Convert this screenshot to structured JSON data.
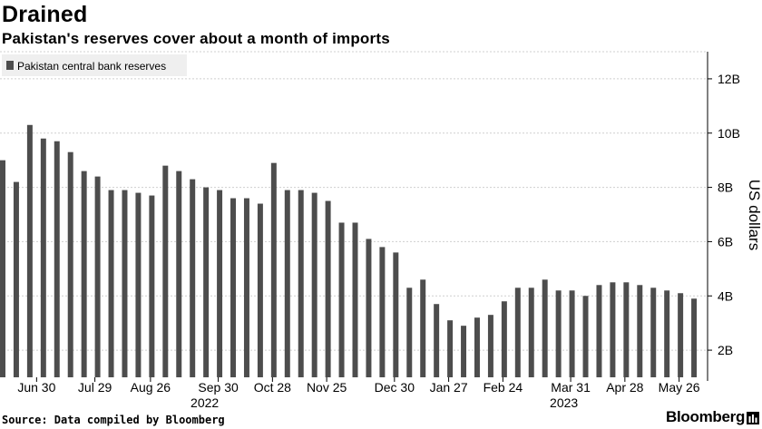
{
  "header": {
    "title": "Drained",
    "subtitle": "Pakistan's reserves cover about a month of imports"
  },
  "footer": {
    "source": "Source: Data compiled by Bloomberg",
    "brand": "Bloomberg"
  },
  "colors": {
    "bar": "#4d4d4d",
    "grid": "#cfcfcf",
    "legend_bg": "#efefef"
  },
  "chart_data": {
    "type": "bar",
    "series": [
      {
        "name": "Pakistan central bank reserves",
        "values": [
          9.0,
          8.2,
          10.3,
          9.8,
          9.7,
          9.3,
          8.6,
          8.4,
          7.9,
          7.9,
          7.8,
          7.7,
          8.8,
          8.6,
          8.3,
          8.0,
          7.9,
          7.6,
          7.6,
          7.4,
          8.9,
          7.9,
          7.9,
          7.8,
          7.5,
          6.7,
          6.7,
          6.1,
          5.8,
          5.6,
          4.3,
          4.6,
          3.7,
          3.1,
          2.9,
          3.2,
          3.3,
          3.8,
          4.3,
          4.3,
          4.6,
          4.2,
          4.2,
          4.0,
          4.4,
          4.5,
          4.5,
          4.4,
          4.3,
          4.2,
          4.1,
          3.9
        ]
      }
    ],
    "x_tick_labels": [
      {
        "index": 2.5,
        "label": "Jun 30"
      },
      {
        "index": 6.8,
        "label": "Jul 29"
      },
      {
        "index": 10.9,
        "label": "Aug 26"
      },
      {
        "index": 15.9,
        "label": "Sep 30"
      },
      {
        "index": 19.9,
        "label": "Oct 28"
      },
      {
        "index": 23.9,
        "label": "Nov 25"
      },
      {
        "index": 28.9,
        "label": "Dec 30"
      },
      {
        "index": 32.9,
        "label": "Jan 27"
      },
      {
        "index": 36.9,
        "label": "Feb 24"
      },
      {
        "index": 41.9,
        "label": "Mar 31"
      },
      {
        "index": 45.9,
        "label": "Apr 28"
      },
      {
        "index": 49.9,
        "label": "May 26"
      }
    ],
    "year_labels": [
      {
        "index": 14.9,
        "label": "2022"
      },
      {
        "index": 41.4,
        "label": "2023"
      }
    ],
    "y_ticks": [
      2,
      4,
      6,
      8,
      10,
      12
    ],
    "y_tick_labels": [
      "2B",
      "4B",
      "6B",
      "8B",
      "10B",
      "12B"
    ],
    "ylim": [
      1,
      13
    ],
    "ylabel": "US dollars",
    "legend": "top-left",
    "grid": true
  }
}
